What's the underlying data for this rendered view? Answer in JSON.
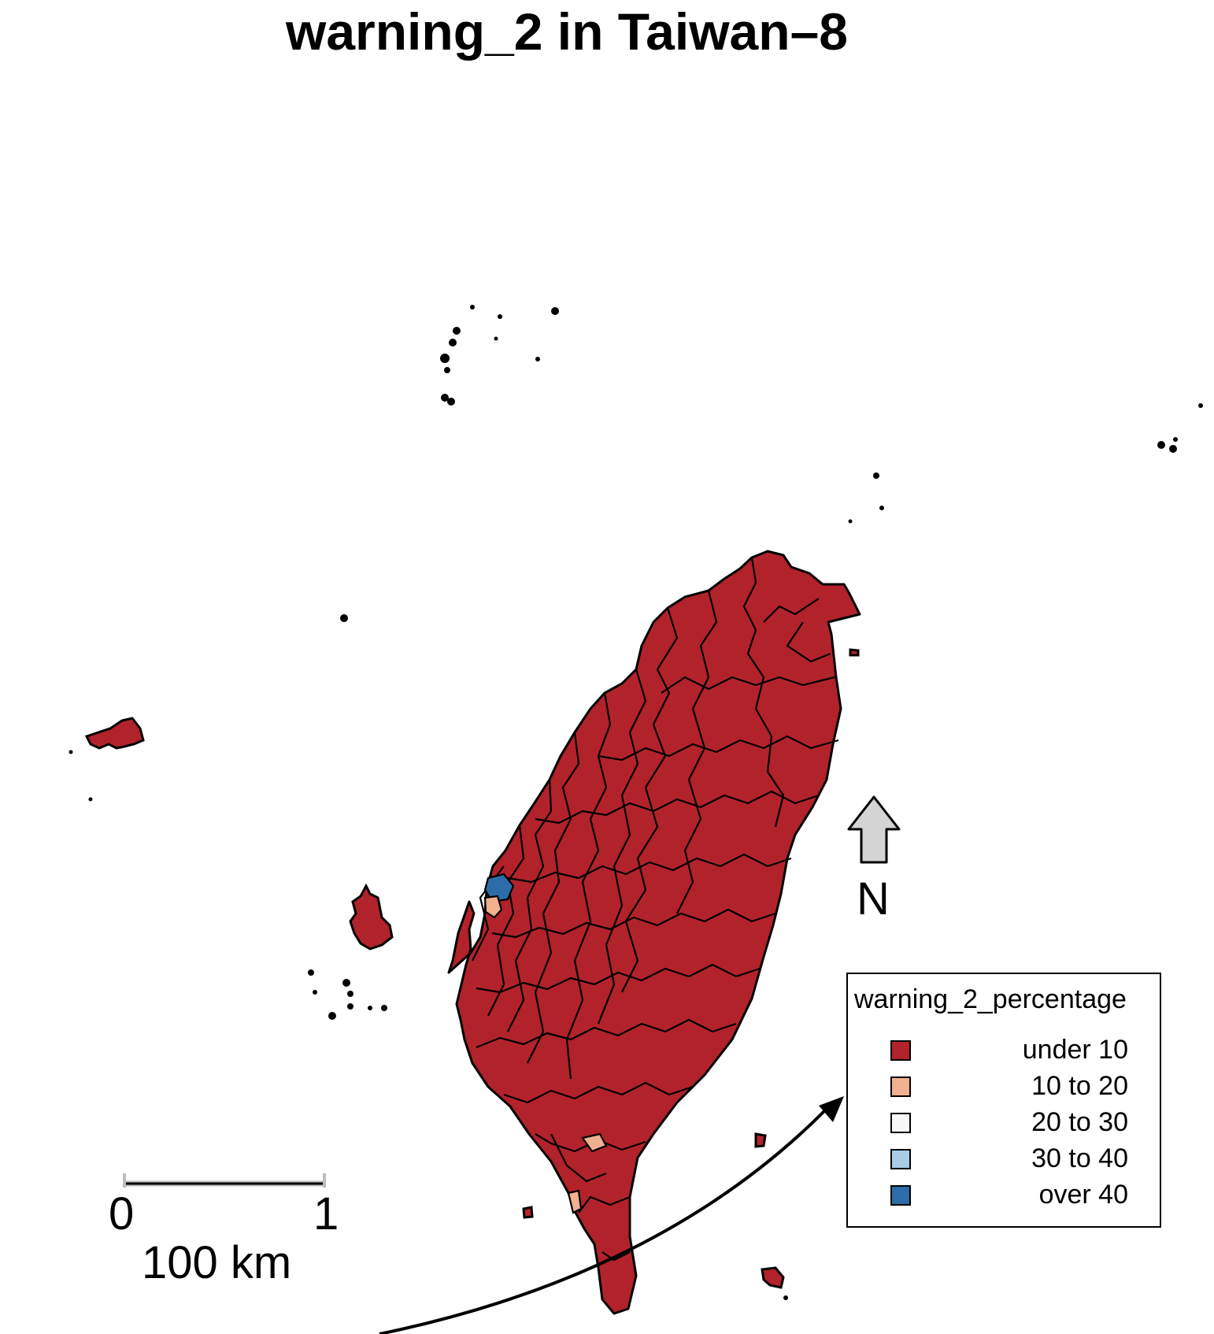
{
  "title": "warning_2 in Taiwan–8",
  "legend": {
    "title": "warning_2_percentage",
    "items": [
      {
        "label": "under 10",
        "color": "#b2222a"
      },
      {
        "label": "10 to 20",
        "color": "#f1b08f"
      },
      {
        "label": "20 to 30",
        "color": "#f7f7f7"
      },
      {
        "label": "30 to 40",
        "color": "#a7cce3"
      },
      {
        "label": "over 40",
        "color": "#2c6ca9"
      }
    ]
  },
  "scale_bar": {
    "tick_start": "0",
    "tick_end": "1",
    "unit_label": "100 km"
  },
  "north_arrow": {
    "label": "N"
  },
  "colors": {
    "land": "#b2222a",
    "border": "#000000",
    "arrow_fill": "#d4d4d4"
  }
}
